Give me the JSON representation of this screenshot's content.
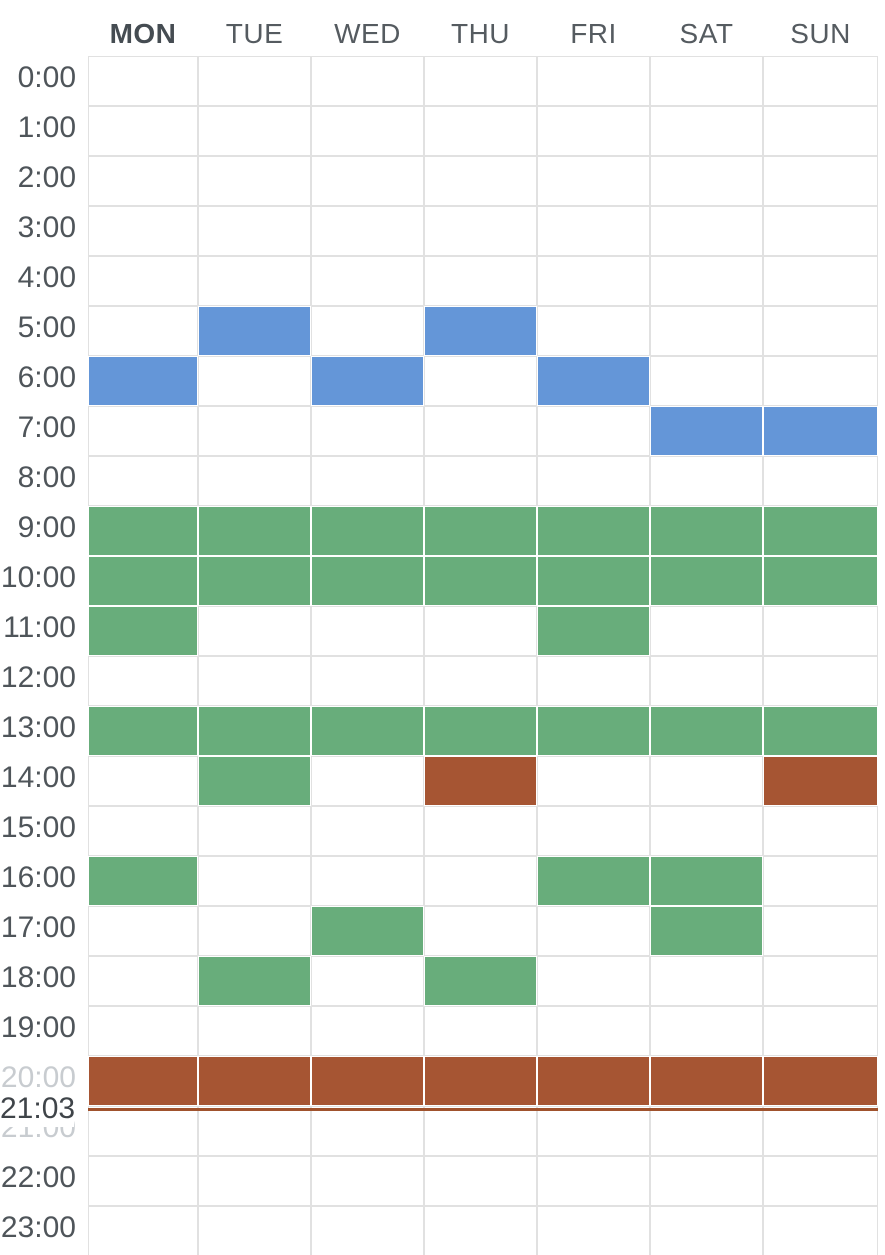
{
  "days": [
    {
      "label": "MON",
      "today": true
    },
    {
      "label": "TUE",
      "today": false
    },
    {
      "label": "WED",
      "today": false
    },
    {
      "label": "THU",
      "today": false
    },
    {
      "label": "FRI",
      "today": false
    },
    {
      "label": "SAT",
      "today": false
    },
    {
      "label": "SUN",
      "today": false
    }
  ],
  "hours": [
    "0:00",
    "1:00",
    "2:00",
    "3:00",
    "4:00",
    "5:00",
    "6:00",
    "7:00",
    "8:00",
    "9:00",
    "10:00",
    "11:00",
    "12:00",
    "13:00",
    "14:00",
    "15:00",
    "16:00",
    "17:00",
    "18:00",
    "19:00",
    "20:00",
    "21:00",
    "22:00",
    "23:00"
  ],
  "current_time": {
    "label": "21:03",
    "hour": 21,
    "minute": 3
  },
  "colors": {
    "blue": "#6496d8",
    "green": "#68ad7b",
    "rust": "#a65533",
    "empty": "#ffffff",
    "grid_line": "#e1e1e1",
    "now_line": "#a0522d"
  },
  "schedule": [
    {
      "hour": 0,
      "days": [
        "",
        "",
        "",
        "",
        "",
        "",
        ""
      ]
    },
    {
      "hour": 1,
      "days": [
        "",
        "",
        "",
        "",
        "",
        "",
        ""
      ]
    },
    {
      "hour": 2,
      "days": [
        "",
        "",
        "",
        "",
        "",
        "",
        ""
      ]
    },
    {
      "hour": 3,
      "days": [
        "",
        "",
        "",
        "",
        "",
        "",
        ""
      ]
    },
    {
      "hour": 4,
      "days": [
        "",
        "",
        "",
        "",
        "",
        "",
        ""
      ]
    },
    {
      "hour": 5,
      "days": [
        "",
        "blue",
        "",
        "blue",
        "",
        "",
        ""
      ]
    },
    {
      "hour": 6,
      "days": [
        "blue",
        "",
        "blue",
        "",
        "blue",
        "",
        ""
      ]
    },
    {
      "hour": 7,
      "days": [
        "",
        "",
        "",
        "",
        "",
        "blue",
        "blue"
      ]
    },
    {
      "hour": 8,
      "days": [
        "",
        "",
        "",
        "",
        "",
        "",
        ""
      ]
    },
    {
      "hour": 9,
      "days": [
        "green",
        "green",
        "green",
        "green",
        "green",
        "green",
        "green"
      ]
    },
    {
      "hour": 10,
      "days": [
        "green",
        "green",
        "green",
        "green",
        "green",
        "green",
        "green"
      ]
    },
    {
      "hour": 11,
      "days": [
        "green",
        "",
        "",
        "",
        "green",
        "",
        ""
      ]
    },
    {
      "hour": 12,
      "days": [
        "",
        "",
        "",
        "",
        "",
        "",
        ""
      ]
    },
    {
      "hour": 13,
      "days": [
        "green",
        "green",
        "green",
        "green",
        "green",
        "green",
        "green"
      ]
    },
    {
      "hour": 14,
      "days": [
        "",
        "green",
        "",
        "rust",
        "",
        "",
        "rust"
      ]
    },
    {
      "hour": 15,
      "days": [
        "",
        "",
        "",
        "",
        "",
        "",
        ""
      ]
    },
    {
      "hour": 16,
      "days": [
        "green",
        "",
        "",
        "",
        "green",
        "green",
        ""
      ]
    },
    {
      "hour": 17,
      "days": [
        "",
        "",
        "green",
        "",
        "",
        "green",
        ""
      ]
    },
    {
      "hour": 18,
      "days": [
        "",
        "green",
        "",
        "green",
        "",
        "",
        ""
      ]
    },
    {
      "hour": 19,
      "days": [
        "",
        "",
        "",
        "",
        "",
        "",
        ""
      ]
    },
    {
      "hour": 20,
      "days": [
        "rust",
        "rust",
        "rust",
        "rust",
        "rust",
        "rust",
        "rust"
      ]
    },
    {
      "hour": 21,
      "days": [
        "",
        "",
        "",
        "",
        "",
        "",
        ""
      ]
    },
    {
      "hour": 22,
      "days": [
        "",
        "",
        "",
        "",
        "",
        "",
        ""
      ]
    },
    {
      "hour": 23,
      "days": [
        "",
        "",
        "",
        "",
        "",
        "",
        ""
      ]
    }
  ]
}
